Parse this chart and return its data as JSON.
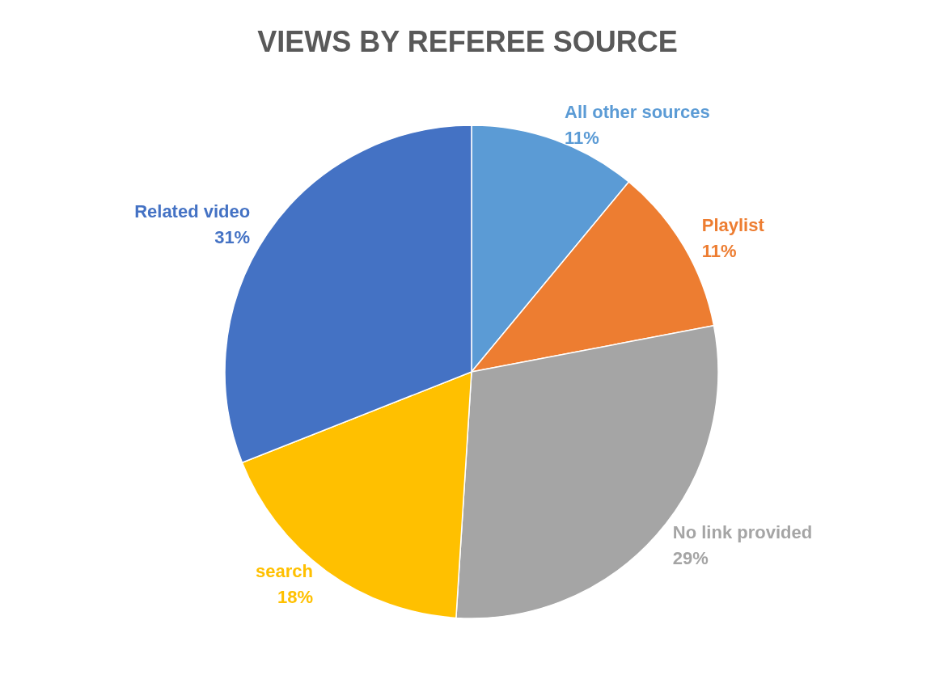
{
  "chart_data": {
    "type": "pie",
    "title": "VIEWS BY REFEREE SOURCE",
    "categories": [
      "All other sources",
      "Playlist",
      "No link provided",
      "search",
      "Related video"
    ],
    "values": [
      11,
      11,
      29,
      18,
      31
    ],
    "value_labels": [
      "11%",
      "11%",
      "29%",
      "18%",
      "31%"
    ],
    "colors": [
      "#5b9bd5",
      "#ed7d31",
      "#a5a5a5",
      "#ffc000",
      "#4472c4"
    ],
    "legend": false
  }
}
